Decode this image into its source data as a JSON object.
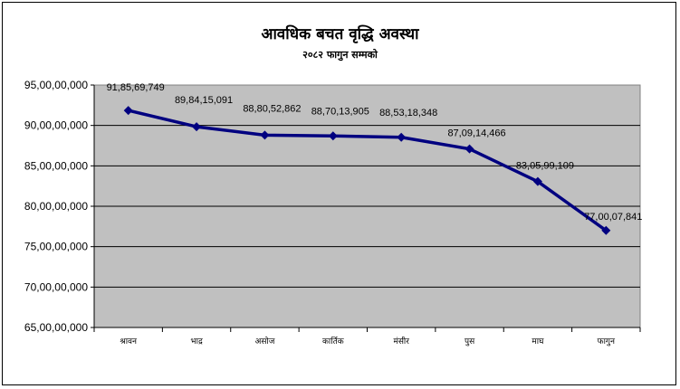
{
  "chart_data": {
    "type": "line",
    "title": "आवधिक बचत वृद्धि अवस्था",
    "subtitle": "२०८२ फागुन सम्मको",
    "categories": [
      "श्रावन",
      "भाद्र",
      "असोज",
      "कार्तिक",
      "मंसीर",
      "पुस",
      "माघ",
      "फागुन"
    ],
    "series": [
      {
        "values": [
          918569749,
          898415091,
          888052862,
          887013905,
          885318348,
          870914466,
          830599109,
          770007841
        ],
        "data_labels": [
          "91,85,69,749",
          "89,84,15,091",
          "88,80,52,862",
          "88,70,13,905",
          "88,53,18,348",
          "87,09,14,466",
          "83,05,99,109",
          "77,00,07,841"
        ]
      }
    ],
    "ylim": [
      650000000,
      950000000
    ],
    "y_ticks": [
      650000000,
      700000000,
      750000000,
      800000000,
      850000000,
      900000000,
      950000000
    ],
    "y_tick_labels": [
      "65,00,00,000",
      "70,00,00,000",
      "75,00,00,000",
      "80,00,00,000",
      "85,00,00,000",
      "90,00,00,000",
      "95,00,00,000"
    ],
    "grid": true,
    "legend": "none",
    "colors": {
      "line": "#000080",
      "plot_background": "#c0c0c0",
      "grid": "#000000"
    },
    "xlabel": "",
    "ylabel": ""
  }
}
